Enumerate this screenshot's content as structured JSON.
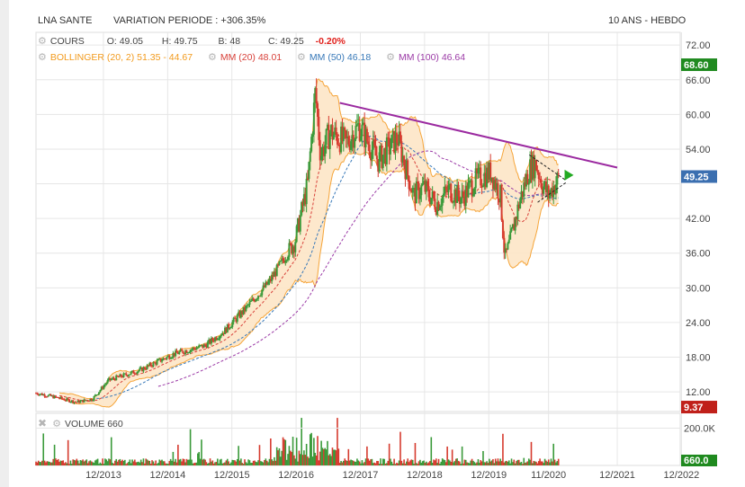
{
  "header": {
    "instrument": "LNA SANTE",
    "variation": "VARIATION PERIODE : +306.35%",
    "timeframe": "10 ANS - HEBDO"
  },
  "legend": {
    "price": {
      "name": "COURS",
      "open": "O: 49.05",
      "high": "H: 49.75",
      "low": "B: 48",
      "close": "C: 49.25",
      "change": "-0.20%"
    },
    "bollinger": "BOLLINGER (20, 2)  51.35 - 44.67",
    "mm20": "MM (20)  48.01",
    "mm50": "MM (50)  46.18",
    "mm100": "MM (100)  46.64",
    "volume": "VOLUME  660"
  },
  "colors": {
    "up": "#3a9a3a",
    "down": "#d63b2f",
    "bollinger": "#f5a53a",
    "bollinger_fill": "#fde5c6",
    "mm20": "#d8413a",
    "mm50": "#3778b8",
    "mm100": "#9b3aa6",
    "trendline": "#9b2aa0",
    "grid": "#e6e6e6",
    "last_price_tag": "#3b6fb0",
    "high_tag": "#1f8a1f",
    "low_tag": "#c0201a",
    "volume_tag": "#1f8a1f"
  },
  "chart_data": {
    "type": "candlestick",
    "frequency": "weekly",
    "x_ticks": [
      "12/2013",
      "12/2014",
      "12/2015",
      "12/2016",
      "12/2017",
      "12/2018",
      "12/2019",
      "11/2020",
      "12/2021",
      "12/2022"
    ],
    "x_tick_dates": [
      2013.92,
      2014.92,
      2015.92,
      2016.92,
      2017.92,
      2018.92,
      2019.92,
      2020.85,
      2021.92,
      2022.92
    ],
    "x_range": [
      2012.87,
      2022.9
    ],
    "y_ticks": [
      12,
      18,
      24,
      30,
      36,
      42,
      48,
      54,
      60,
      66,
      72
    ],
    "y_tick_labels": [
      "12.00",
      "18.00",
      "24.00",
      "30.00",
      "36.00",
      "42.00",
      "",
      "54.00",
      "60.00",
      "66.00",
      "72.00"
    ],
    "y_range": [
      8.6,
      74.2
    ],
    "last_price": {
      "value": 49.25,
      "label": "49.25"
    },
    "period_high": {
      "value": 68.6,
      "label": "68.60"
    },
    "period_low": {
      "value": 9.37,
      "label": "9.37"
    },
    "price_path": [
      [
        2012.87,
        11.8
      ],
      [
        2013.2,
        11.0
      ],
      [
        2013.5,
        10.2
      ],
      [
        2013.75,
        10.8
      ],
      [
        2014.0,
        14.0
      ],
      [
        2014.5,
        15.8
      ],
      [
        2015.0,
        18.5
      ],
      [
        2015.5,
        20.0
      ],
      [
        2015.8,
        22.5
      ],
      [
        2016.1,
        26.0
      ],
      [
        2016.5,
        31.0
      ],
      [
        2016.9,
        38.0
      ],
      [
        2017.1,
        48.0
      ],
      [
        2017.22,
        64.0
      ],
      [
        2017.3,
        53.0
      ],
      [
        2017.45,
        57.0
      ],
      [
        2017.7,
        55.0
      ],
      [
        2017.9,
        58.0
      ],
      [
        2018.2,
        52.0
      ],
      [
        2018.5,
        56.0
      ],
      [
        2018.62,
        51.0
      ],
      [
        2018.75,
        46.0
      ],
      [
        2018.9,
        47.5
      ],
      [
        2019.1,
        44.5
      ],
      [
        2019.3,
        47.0
      ],
      [
        2019.5,
        45.5
      ],
      [
        2019.7,
        48.5
      ],
      [
        2019.95,
        50.0
      ],
      [
        2020.1,
        46.0
      ],
      [
        2020.17,
        35.0
      ],
      [
        2020.25,
        38.0
      ],
      [
        2020.4,
        45.0
      ],
      [
        2020.55,
        50.5
      ],
      [
        2020.65,
        51.5
      ],
      [
        2020.75,
        48.0
      ],
      [
        2020.85,
        46.0
      ],
      [
        2021.02,
        49.25
      ]
    ],
    "overlays": {
      "bollinger_bands": {
        "name": "BOLLINGER (20, 2)",
        "last_upper": 51.35,
        "last_lower": 44.67
      },
      "mm20": {
        "name": "MM (20)",
        "last": 48.01
      },
      "mm50": {
        "name": "MM (50)",
        "last": 46.18
      },
      "mm100": {
        "name": "MM (100)",
        "last": 46.64
      }
    },
    "trendline": {
      "from": [
        2017.6,
        62.0
      ],
      "to": [
        2021.92,
        50.8
      ]
    },
    "wedge_lines": [
      {
        "from": [
          2020.55,
          53.0
        ],
        "to": [
          2021.12,
          48.6
        ]
      },
      {
        "from": [
          2020.68,
          44.8
        ],
        "to": [
          2021.12,
          48.2
        ]
      }
    ],
    "volume": {
      "label": "VOLUME",
      "last": 660,
      "y_tick_labels": [
        "200.0K"
      ],
      "y_tick_values": [
        200000
      ],
      "last_label": "660.0",
      "max_bar": 260000
    }
  }
}
